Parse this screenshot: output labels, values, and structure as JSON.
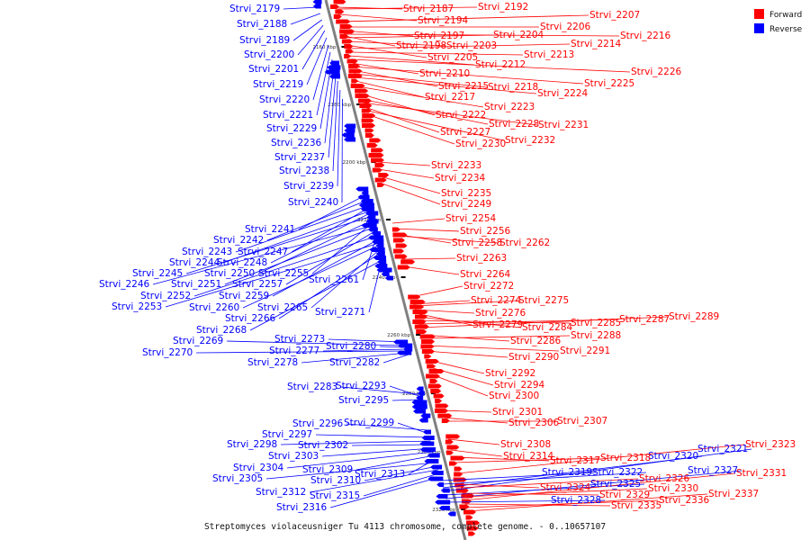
{
  "caption": "Streptomyces violaceusniger Tu 4113 chromosome, complete genome. - 0..10657107",
  "legend": [
    {
      "label": "Forward",
      "color": "#ff0000"
    },
    {
      "label": "Reverse",
      "color": "#0000ff"
    }
  ],
  "colors": {
    "forward": "#ff0000",
    "reverse": "#0000ff",
    "axis": "#808080"
  },
  "ticks": [
    "2160 kbp",
    "2180 kbp",
    "2200 kbp",
    "2220 kbp",
    "2240 kbp",
    "2260 kbp",
    "2280 kbp",
    "2300 kbp",
    "2320 kbp"
  ],
  "reverse_genes": [
    "Strvi_2179",
    "Strvi_2188",
    "Strvi_2189",
    "Strvi_2200",
    "Strvi_2201",
    "Strvi_2219",
    "Strvi_2220",
    "Strvi_2221",
    "Strvi_2229",
    "Strvi_2236",
    "Strvi_2237",
    "Strvi_2238",
    "Strvi_2239",
    "Strvi_2240",
    "Strvi_2241",
    "Strvi_2242",
    "Strvi_2243",
    "Strvi_2247",
    "Strvi_2244",
    "Strvi_2248",
    "Strvi_2245",
    "Strvi_2250",
    "Strvi_2255",
    "Strvi_2246",
    "Strvi_2251",
    "Strvi_2257",
    "Strvi_2261",
    "Strvi_2252",
    "Strvi_2259",
    "Strvi_2253",
    "Strvi_2260",
    "Strvi_2265",
    "Strvi_2266",
    "Strvi_2271",
    "Strvi_2268",
    "Strvi_2273",
    "Strvi_2269",
    "Strvi_2280",
    "Strvi_2277",
    "Strvi_2270",
    "Strvi_2278",
    "Strvi_2282",
    "Strvi_2283",
    "Strvi_2293",
    "Strvi_2295",
    "Strvi_2296",
    "Strvi_2299",
    "Strvi_2297",
    "Strvi_2298",
    "Strvi_2302",
    "Strvi_2303",
    "Strvi_2304",
    "Strvi_2309",
    "Strvi_2313",
    "Strvi_2305",
    "Strvi_2310",
    "Strvi_2312",
    "Strvi_2315",
    "Strvi_2316",
    "Strvi_2319",
    "Strvi_2322",
    "Strvi_2320",
    "Strvi_2321",
    "Strvi_2325",
    "Strvi_2327",
    "Strvi_2328"
  ],
  "forward_genes": [
    "Strvi_2187",
    "Strvi_2192",
    "Strvi_2194",
    "Strvi_2207",
    "Strvi_2206",
    "Strvi_2216",
    "Strvi_2197",
    "Strvi_2204",
    "Strvi_2198",
    "Strvi_2203",
    "Strvi_2214",
    "Strvi_2205",
    "Strvi_2213",
    "Strvi_2212",
    "Strvi_2226",
    "Strvi_2210",
    "Strvi_2225",
    "Strvi_2215",
    "Strvi_2218",
    "Strvi_2224",
    "Strvi_2217",
    "Strvi_2223",
    "Strvi_2222",
    "Strvi_2228",
    "Strvi_2231",
    "Strvi_2227",
    "Strvi_2232",
    "Strvi_2230",
    "Strvi_2233",
    "Strvi_2234",
    "Strvi_2235",
    "Strvi_2249",
    "Strvi_2254",
    "Strvi_2256",
    "Strvi_2258",
    "Strvi_2262",
    "Strvi_2263",
    "Strvi_2264",
    "Strvi_2272",
    "Strvi_2274",
    "Strvi_2275",
    "Strvi_2276",
    "Strvi_2279",
    "Strvi_2284",
    "Strvi_2285",
    "Strvi_2287",
    "Strvi_2289",
    "Strvi_2286",
    "Strvi_2288",
    "Strvi_2291",
    "Strvi_2290",
    "Strvi_2292",
    "Strvi_2294",
    "Strvi_2300",
    "Strvi_2301",
    "Strvi_2306",
    "Strvi_2307",
    "Strvi_2308",
    "Strvi_2314",
    "Strvi_2317",
    "Strvi_2318",
    "Strvi_2324",
    "Strvi_2326",
    "Strvi_2323",
    "Strvi_2329",
    "Strvi_2330",
    "Strvi_2331",
    "Strvi_2335",
    "Strvi_2336",
    "Strvi_2337"
  ]
}
